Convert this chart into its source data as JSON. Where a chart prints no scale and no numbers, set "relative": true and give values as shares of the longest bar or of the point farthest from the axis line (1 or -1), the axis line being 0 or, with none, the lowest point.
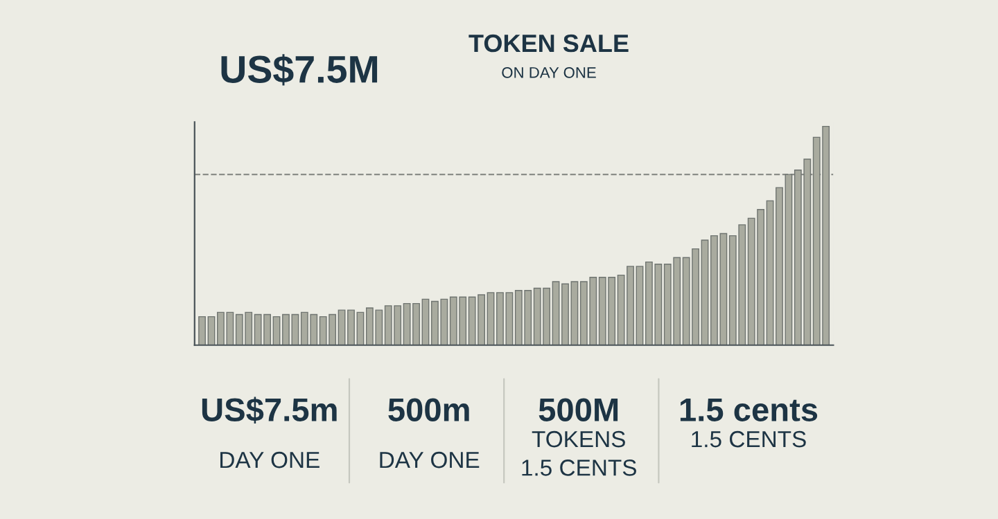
{
  "chart_data": {
    "type": "bar",
    "title": "TOKEN SALE",
    "subtitle": "ON DAY ONE",
    "relative": true,
    "grid": false,
    "legend": false,
    "color": "#a9ab9f",
    "categories": [
      null,
      null,
      null,
      null,
      null,
      null,
      null,
      null,
      null,
      null,
      null,
      null,
      null,
      null,
      null,
      null,
      null,
      null,
      null,
      null,
      null,
      null,
      null,
      null,
      null,
      null,
      null,
      null,
      null,
      null,
      null,
      null,
      null,
      null,
      null,
      null,
      null,
      null,
      null,
      null,
      null,
      null,
      null,
      null,
      null,
      null,
      null,
      null,
      null,
      null,
      null,
      null,
      null,
      null,
      null,
      null,
      null,
      null,
      null,
      null,
      null,
      null,
      null,
      null,
      null,
      null,
      null,
      null
    ],
    "values": [
      0.13,
      0.13,
      0.15,
      0.15,
      0.14,
      0.15,
      0.14,
      0.14,
      0.13,
      0.14,
      0.14,
      0.15,
      0.14,
      0.13,
      0.14,
      0.16,
      0.16,
      0.15,
      0.17,
      0.16,
      0.18,
      0.18,
      0.19,
      0.19,
      0.21,
      0.2,
      0.21,
      0.22,
      0.22,
      0.22,
      0.23,
      0.24,
      0.24,
      0.24,
      0.25,
      0.25,
      0.26,
      0.26,
      0.29,
      0.28,
      0.29,
      0.29,
      0.31,
      0.31,
      0.31,
      0.32,
      0.36,
      0.36,
      0.38,
      0.37,
      0.37,
      0.4,
      0.4,
      0.44,
      0.48,
      0.5,
      0.51,
      0.5,
      0.55,
      0.58,
      0.62,
      0.66,
      0.72,
      0.78,
      0.8,
      0.85,
      0.95,
      1.0
    ],
    "ref_lines": [
      {
        "axis": "y",
        "value": 0.78,
        "color": "#8a8d88",
        "line_style": "dashed"
      }
    ],
    "annotations": [
      "US$7.5M",
      "US$7.5m",
      "DAY ONE",
      "500m",
      "DAY ONE",
      "500M",
      "TOKENS",
      "1.5 CENTS",
      "1.5 cents",
      "1.5 CENTS"
    ]
  }
}
